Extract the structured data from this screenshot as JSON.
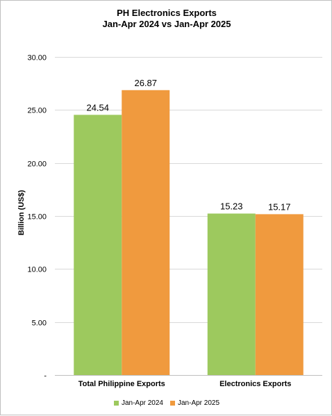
{
  "chart_data": {
    "type": "bar",
    "title": [
      "PH Electronics Exports",
      "Jan-Apr 2024 vs Jan-Apr 2025"
    ],
    "ylabel": "Billion (US$)",
    "xlabel": "",
    "categories": [
      "Total Philippine Exports",
      "Electronics Exports"
    ],
    "series": [
      {
        "name": "Jan-Apr 2024",
        "values": [
          24.54,
          15.23
        ],
        "value_labels": [
          "24.54",
          "15.23"
        ],
        "color": "#9dc95e"
      },
      {
        "name": "Jan-Apr 2025",
        "values": [
          26.87,
          15.17
        ],
        "value_labels": [
          "26.87",
          "15.17"
        ],
        "color": "#f09a3e"
      }
    ],
    "ylim": [
      0,
      30
    ],
    "yticks": [
      0,
      5,
      10,
      15,
      20,
      25,
      30
    ],
    "ytick_labels": [
      "-",
      "5.00",
      "10.00",
      "15.00",
      "20.00",
      "25.00",
      "30.00"
    ],
    "grid": true,
    "legend_position": "bottom"
  }
}
